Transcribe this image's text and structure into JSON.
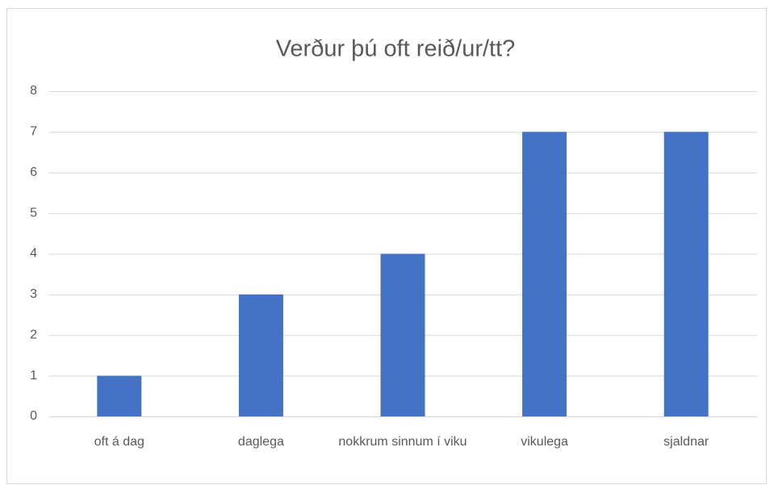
{
  "chart_data": {
    "type": "bar",
    "title": "Verður þú oft reið/ur/tt?",
    "categories": [
      "oft á dag",
      "daglega",
      "nokkrum sinnum í viku",
      "vikulega",
      "sjaldnar"
    ],
    "values": [
      1,
      3,
      4,
      7,
      7
    ],
    "color": "#4472c4",
    "ylim": [
      0,
      8
    ],
    "yticks": [
      0,
      1,
      2,
      3,
      4,
      5,
      6,
      7,
      8
    ],
    "grid": true
  }
}
